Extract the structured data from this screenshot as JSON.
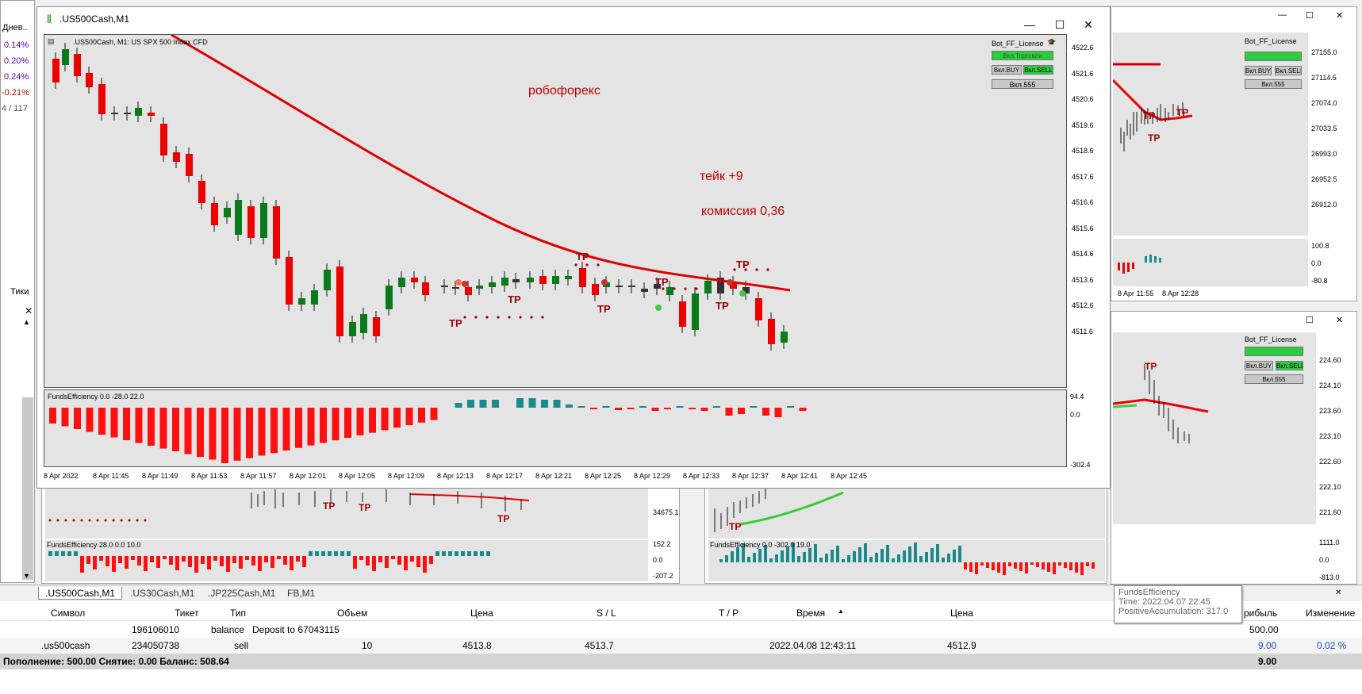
{
  "left_panel": {
    "header": "Днев..",
    "changes": [
      "0.14%",
      "0.20%",
      "0.24%",
      "-0.21%"
    ],
    "count": "4 / 117",
    "tab_label": "Тики"
  },
  "main_window": {
    "title": ".US500Cash,M1",
    "chart_caption": ".US500Cash, M1:  US SPX 500 Index CFD",
    "indicator_caption": "FundsEfficiency 0.0 -28.0 22.0",
    "annotation_1": "робофорекс",
    "annotation_2": "тейк +9",
    "annotation_3": "комиссия 0,36",
    "panel_title": "Bot_FF_License",
    "panel_btn_trade": "Вкл.Торговли",
    "panel_btn_buy": "Вкл.BUY",
    "panel_btn_sell": "Вкл.SELL",
    "panel_btn_555": "Вкл.555",
    "price_ticks": [
      "4522.6",
      "4521.6",
      "4520.6",
      "4519.6",
      "4518.6",
      "4517.6",
      "4516.6",
      "4515.6",
      "4514.6",
      "4513.6",
      "4512.6",
      "4511.6"
    ],
    "ind_ticks": [
      "94.4",
      "0.0",
      "-302.4"
    ],
    "time_ticks": [
      "8 Apr 2022",
      "8 Apr 11:45",
      "8 Apr 11:49",
      "8 Apr 11:53",
      "8 Apr 11:57",
      "8 Apr 12:01",
      "8 Apr 12:05",
      "8 Apr 12:09",
      "8 Apr 12:13",
      "8 Apr 12:17",
      "8 Apr 12:21",
      "8 Apr 12:25",
      "8 Apr 12:29",
      "8 Apr 12:33",
      "8 Apr 12:37",
      "8 Apr 12:41",
      "8 Apr 12:45"
    ],
    "tp_label": "TP"
  },
  "right_top": {
    "panel_title": "Bot_FF_License",
    "btn_buy": "Вкл.BUY",
    "btn_sell": "Вкл.SELL",
    "btn_555": "Вкл.555",
    "price_ticks": [
      "27155.0",
      "27114.5",
      "27074.0",
      "27033.5",
      "26993.0",
      "26952.5",
      "26912.0"
    ],
    "ind_ticks": [
      "100.8",
      "0.0",
      "-80.8"
    ],
    "time_ticks": [
      "8 Apr 11:55",
      "8 Apr 12:28"
    ]
  },
  "right_bottom": {
    "panel_title": "Bot_FF_License",
    "btn_buy": "Вкл.BUY",
    "btn_sell": "Вкл.SELL",
    "btn_555": "Вкл.555",
    "price_ticks": [
      "224.60",
      "224.10",
      "223.60",
      "223.10",
      "222.60",
      "222.10",
      "221.60"
    ],
    "ind_ticks": [
      "1111.0",
      "0.0",
      "-813.0"
    ]
  },
  "bottom_left_chart": {
    "indicator_caption": "FundsEfficiency 28.0 0.0 10.0",
    "price_tick": "34675.1",
    "ind_ticks": [
      "152.2",
      "0.0",
      "-207.2"
    ]
  },
  "bottom_mid_chart": {
    "indicator_caption": "FundsEfficiency 0.0 -302.0 19.0"
  },
  "tabs": [
    ".US500Cash,M1",
    ".US30Cash,M1",
    ".JP225Cash,M1",
    "FB,M1"
  ],
  "tooltip": {
    "line1": "FundsEfficiency",
    "line2": "Time: 2022.04.07 22:45",
    "line3": "PositiveAccumulation: 317.0"
  },
  "table": {
    "headers": [
      "Символ",
      "Тикет",
      "Тип",
      "Объем",
      "Цена",
      "S / L",
      "T / P",
      "Время",
      "Цена",
      "рибыль",
      "Изменение"
    ],
    "rows": [
      {
        "symbol": "",
        "ticket": "196106010",
        "type": "balance",
        "volume": "Deposit to 67043115",
        "price": "",
        "sl": "",
        "tp": "",
        "time": "",
        "price2": "",
        "profit": "500.00",
        "change": ""
      },
      {
        "symbol": ".us500cash",
        "ticket": "234050738",
        "type": "sell",
        "volume": "10",
        "price": "4513.8",
        "sl": "4513.7",
        "tp": "",
        "time": "2022.04.08 12:43:11",
        "price2": "4512.9",
        "profit": "9.00",
        "change": "0.02 %"
      }
    ],
    "footer": "Пополнение: 500.00  Снятие: 0.00  Баланс: 508.64",
    "footer_profit": "9.00"
  }
}
